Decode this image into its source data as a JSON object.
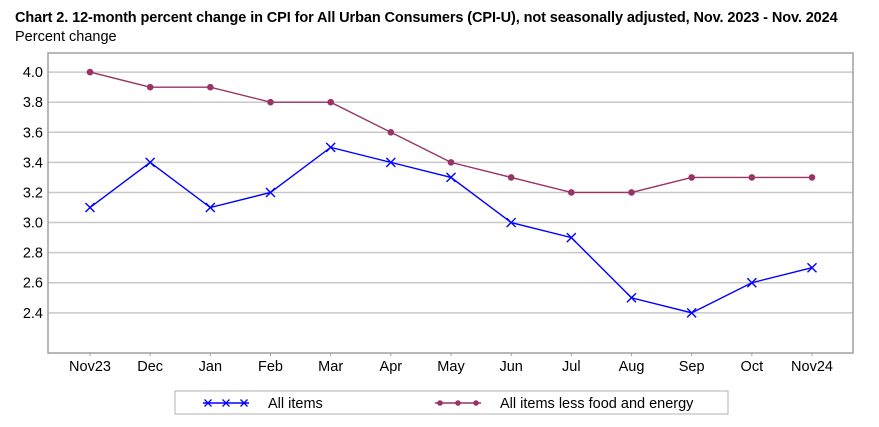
{
  "chart_data": {
    "type": "line",
    "title": "Chart 2. 12-month percent change in CPI for All Urban Consumers (CPI-U), not seasonally adjusted, Nov. 2023 - Nov. 2024",
    "ylabel": "Percent change",
    "xlabel": "",
    "categories": [
      "Nov23",
      "Dec",
      "Jan",
      "Feb",
      "Mar",
      "Apr",
      "May",
      "Jun",
      "Jul",
      "Aug",
      "Sep",
      "Oct",
      "Nov24"
    ],
    "yticks": [
      "4.0",
      "3.8",
      "3.6",
      "3.4",
      "3.2",
      "3.0",
      "2.8",
      "2.6",
      "2.4"
    ],
    "ylim": [
      2.133,
      4.127
    ],
    "grid": true,
    "legend_position": "bottom",
    "series": [
      {
        "name": "All items",
        "color": "#0000ff",
        "marker": "x",
        "values": [
          3.1,
          3.4,
          3.1,
          3.2,
          3.5,
          3.4,
          3.3,
          3.0,
          2.9,
          2.5,
          2.4,
          2.6,
          2.7
        ]
      },
      {
        "name": "All items less food and energy",
        "color": "#993366",
        "marker": "circle",
        "values": [
          4.0,
          3.9,
          3.9,
          3.8,
          3.8,
          3.6,
          3.4,
          3.3,
          3.2,
          3.2,
          3.3,
          3.3,
          3.3
        ]
      }
    ]
  }
}
